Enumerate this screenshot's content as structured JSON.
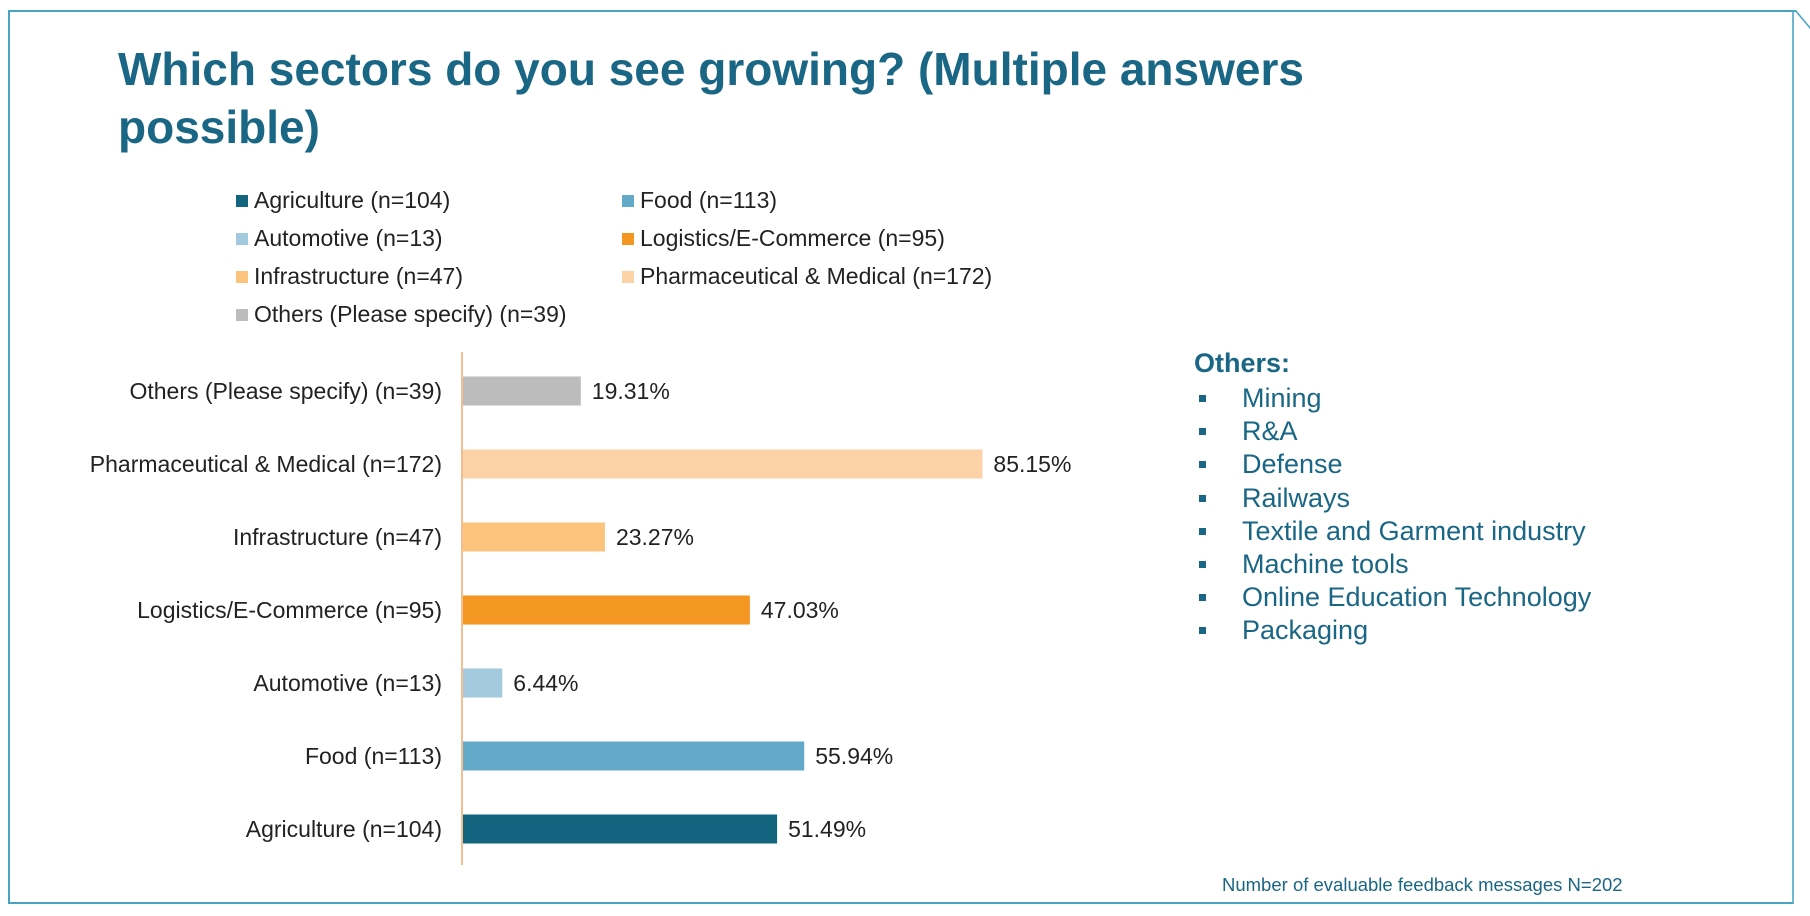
{
  "title": "Which sectors do you see growing? (Multiple answers possible)",
  "colors": {
    "agriculture": "#13647f",
    "food": "#63aac8",
    "automotive": "#a2c9de",
    "logistics": "#f39622",
    "infrastructure": "#fbc37c",
    "pharma": "#fdd2a7",
    "others": "#bcbcbc",
    "axis": "#f3a86c",
    "title": "#1a6685"
  },
  "legend": [
    {
      "label": "Agriculture (n=104)",
      "color": "#13647f"
    },
    {
      "label": "Food (n=113)",
      "color": "#63aac8"
    },
    {
      "label": "Automotive (n=13)",
      "color": "#a2c9de"
    },
    {
      "label": "Logistics/E-Commerce (n=95)",
      "color": "#f39622"
    },
    {
      "label": "Infrastructure (n=47)",
      "color": "#fbc37c"
    },
    {
      "label": "Pharmaceutical & Medical (n=172)",
      "color": "#fdd2a7"
    },
    {
      "label": "Others (Please specify) (n=39)",
      "color": "#bcbcbc"
    }
  ],
  "chart_data": {
    "type": "bar",
    "orientation": "horizontal",
    "unit": "%",
    "xlim": [
      0,
      100
    ],
    "grid": false,
    "legend_position": "top",
    "categories": [
      "Others (Please specify) (n=39)",
      "Pharmaceutical & Medical (n=172)",
      "Infrastructure (n=47)",
      "Logistics/E-Commerce (n=95)",
      "Automotive (n=13)",
      "Food (n=113)",
      "Agriculture (n=104)"
    ],
    "values": [
      19.31,
      85.15,
      23.27,
      47.03,
      6.44,
      55.94,
      51.49
    ],
    "value_labels": [
      "19.31%",
      "85.15%",
      "23.27%",
      "47.03%",
      "6.44%",
      "55.94%",
      "51.49%"
    ],
    "bar_colors": [
      "#bcbcbc",
      "#fdd2a7",
      "#fbc37c",
      "#f39622",
      "#a2c9de",
      "#63aac8",
      "#13647f"
    ]
  },
  "others_box": {
    "title": "Others:",
    "items": [
      "Mining",
      "R&A",
      "Defense",
      "Railways",
      "Textile and Garment industry",
      "Machine tools",
      "Online Education Technology",
      "Packaging"
    ]
  },
  "footnote": "Number of evaluable feedback messages N=202"
}
